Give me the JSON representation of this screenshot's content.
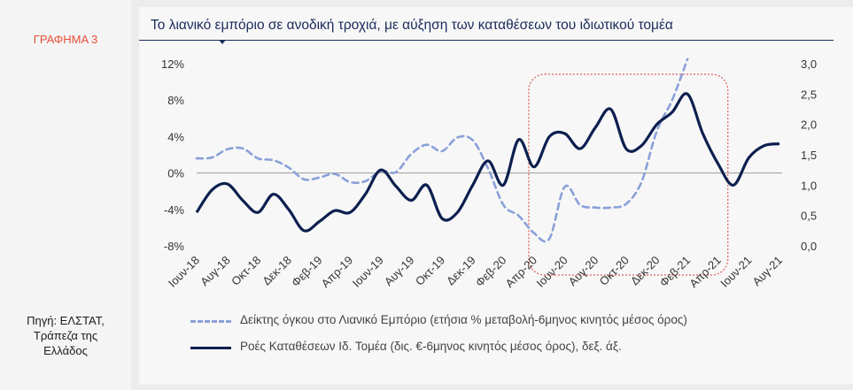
{
  "figure_tag": "ΓΡΑΦΗΜΑ 3",
  "title": "Το λιανικό εμπόριο σε ανοδική τροχιά, με αύξηση των καταθέσεων του ιδιωτικού τομέα",
  "source": "Πηγή: ΕΛΣΤΑΤ, Τράπεζα της Ελλάδος",
  "colors": {
    "dashed_series": "#8aa0d8",
    "solid_series": "#0c1f4f",
    "highlight_box": "#e05a5a",
    "tag": "#e8503a"
  },
  "chart_data": {
    "type": "line",
    "x": [
      "Ιουν-18",
      "Ιουλ-18",
      "Αυγ-18",
      "Σεπ-18",
      "Οκτ-18",
      "Νοε-18",
      "Δεκ-18",
      "Ιαν-19",
      "Φεβ-19",
      "Μαρ-19",
      "Απρ-19",
      "Μαϊ-19",
      "Ιουν-19",
      "Ιουλ-19",
      "Αυγ-19",
      "Σεπ-19",
      "Οκτ-19",
      "Νοε-19",
      "Δεκ-19",
      "Ιαν-20",
      "Φεβ-20",
      "Μαρ-20",
      "Απρ-20",
      "Μαϊ-20",
      "Ιουν-20",
      "Ιουλ-20",
      "Αυγ-20",
      "Σεπ-20",
      "Οκτ-20",
      "Νοε-20",
      "Δεκ-20",
      "Ιαν-21",
      "Φεβ-21",
      "Μαρ-21",
      "Απρ-21",
      "Μαϊ-21",
      "Ιουν-21",
      "Ιουλ-21",
      "Αυγ-21"
    ],
    "x_tick_labels": [
      "Ιουν-18",
      "Αυγ-18",
      "Οκτ-18",
      "Δεκ-18",
      "Φεβ-19",
      "Απρ-19",
      "Ιουν-19",
      "Αυγ-19",
      "Οκτ-19",
      "Δεκ-19",
      "Φεβ-20",
      "Απρ-20",
      "Ιουν-20",
      "Αυγ-20",
      "Οκτ-20",
      "Δεκ-20",
      "Φεβ-21",
      "Απρ-21",
      "Ιουν-21",
      "Αυγ-21"
    ],
    "y_left": {
      "ticks": [
        "12%",
        "8%",
        "4%",
        "0%",
        "-4%",
        "-8%"
      ],
      "range": [
        -8,
        12
      ]
    },
    "y_right": {
      "ticks": [
        "3,0",
        "2,5",
        "2,0",
        "1,5",
        "1,0",
        "0,5",
        "0,0"
      ],
      "range": [
        0,
        3
      ]
    },
    "series": [
      {
        "name": "Δείκτης όγκου στο Λιανικό Εμπόριο (ετήσια % μεταβολή-6μηνος κινητός μέσος όρος)",
        "axis": "left",
        "style": "dashed",
        "values": [
          1.6,
          1.7,
          2.6,
          2.7,
          1.6,
          1.4,
          0.6,
          -0.7,
          -0.5,
          -0.1,
          -1.0,
          -0.9,
          0.2,
          0.1,
          2.1,
          3.1,
          2.4,
          3.9,
          3.6,
          0.5,
          -3.5,
          -4.7,
          -6.6,
          -7.2,
          -1.5,
          -3.5,
          -3.8,
          -3.8,
          -3.4,
          -1.0,
          4.6,
          8.0,
          12.5,
          null,
          null,
          null,
          null,
          null,
          null
        ]
      },
      {
        "name": "Ροές Καταθέσεων Ιδ. Τομέα (δις. €-6μηνος κινητός μέσος όρος), δεξ. άξ.",
        "axis": "right",
        "style": "solid",
        "values": [
          0.55,
          0.92,
          1.02,
          0.75,
          0.55,
          0.85,
          0.6,
          0.25,
          0.4,
          0.58,
          0.55,
          0.85,
          1.25,
          0.98,
          0.75,
          1.0,
          0.45,
          0.55,
          1.0,
          1.4,
          1.0,
          1.75,
          1.3,
          1.8,
          1.85,
          1.6,
          1.95,
          2.25,
          1.6,
          1.65,
          2.0,
          2.2,
          2.5,
          1.85,
          1.35,
          1.0,
          1.45,
          1.65,
          1.68
        ]
      }
    ],
    "highlight_range": [
      "Απρ-20",
      "Απρ-21"
    ]
  }
}
